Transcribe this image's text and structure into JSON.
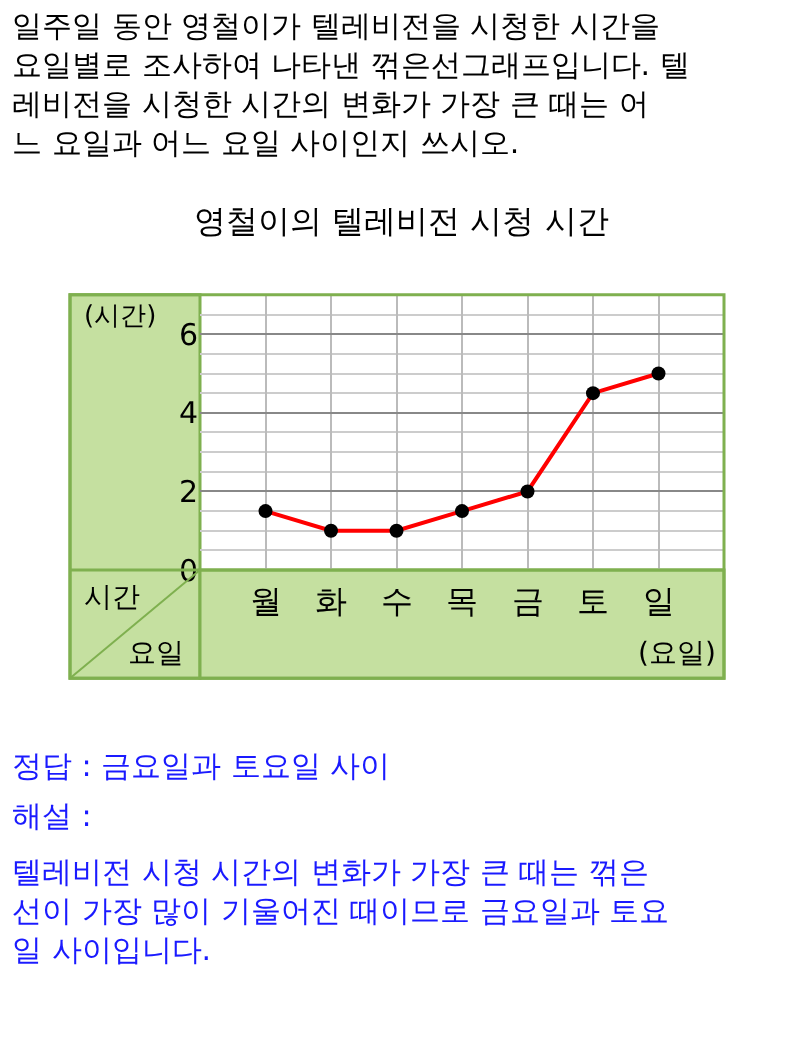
{
  "chart_data": {
    "type": "line",
    "title": "영철이의 텔레비전 시청 시간",
    "xlabel": "(요일)",
    "ylabel": "(시간)",
    "categories": [
      "월",
      "화",
      "수",
      "목",
      "금",
      "토",
      "일"
    ],
    "series": [
      {
        "color": "#ff0000",
        "values": [
          1.5,
          1,
          1,
          1.5,
          2,
          4.5,
          5
        ]
      }
    ],
    "ylim": [
      0,
      7
    ],
    "yticks": [
      0,
      2,
      4,
      6
    ],
    "grid": true,
    "marker": "circle",
    "line_style": "solid",
    "legend": false,
    "annotations": [
      "일주일 동안 영철이가 텔레비전을 시청한 시간을 요일별로 조사하여 나타낸 꺾은선그래프입니다. 텔레비전을 시청한 시간의 변화가 가장 큰 때는 어느 요일과 어느 요일 사이인지 쓰시오.",
      "시간",
      "요일",
      "정답 : 금요일과 토요일 사이",
      "해설 :",
      "텔레비전 시청 시간의 변화가 가장 큰 때는 꺾은선이 가장 많이 기울어진 때이므로 금요일과 토요일 사이입니다."
    ]
  }
}
